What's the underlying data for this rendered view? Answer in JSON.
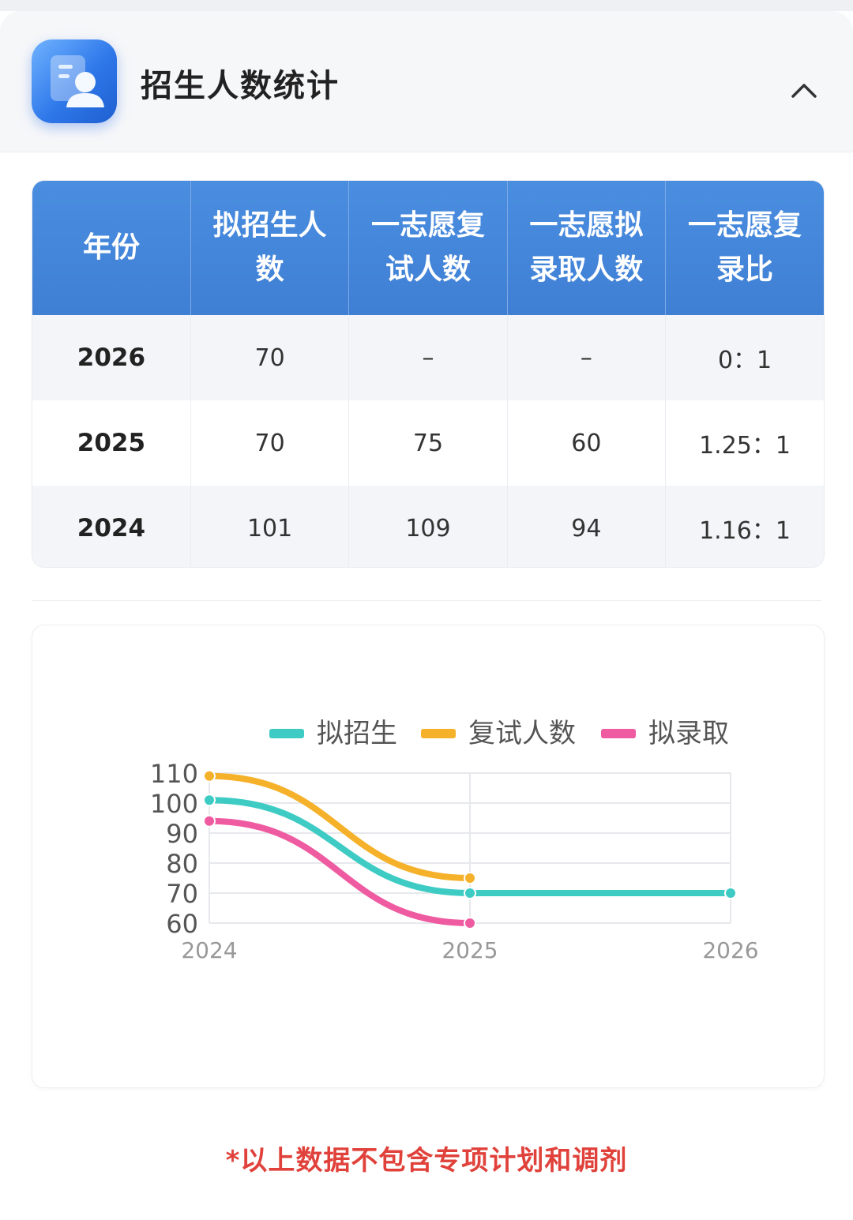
{
  "header": {
    "title": "招生人数统计",
    "icon": "student-profile-icon",
    "collapse_icon": "chevron-up-icon"
  },
  "table": {
    "columns": [
      "年份",
      "拟招生人数",
      "一志愿复试人数",
      "一志愿拟录取人数",
      "一志愿复录比"
    ],
    "rows": [
      {
        "year": "2026",
        "planned": "70",
        "retest": "–",
        "admitted": "–",
        "ratio": "0：1"
      },
      {
        "year": "2025",
        "planned": "70",
        "retest": "75",
        "admitted": "60",
        "ratio": "1.25：1"
      },
      {
        "year": "2024",
        "planned": "101",
        "retest": "109",
        "admitted": "94",
        "ratio": "1.16：1"
      }
    ]
  },
  "chart_data": {
    "type": "line",
    "x": [
      "2024",
      "2025",
      "2026"
    ],
    "series": [
      {
        "name": "拟招生",
        "color": "#3ecbc4",
        "values": [
          101,
          70,
          70
        ]
      },
      {
        "name": "复试人数",
        "color": "#f5b12a",
        "values": [
          109,
          75,
          null
        ]
      },
      {
        "name": "拟录取",
        "color": "#ef5ba1",
        "values": [
          94,
          60,
          null
        ]
      }
    ],
    "y_ticks": [
      "60",
      "70",
      "80",
      "90",
      "100",
      "110"
    ],
    "ylim": [
      60,
      110
    ],
    "grid": true,
    "legend": "top"
  },
  "footnote": "*以上数据不包含专项计划和调剂"
}
